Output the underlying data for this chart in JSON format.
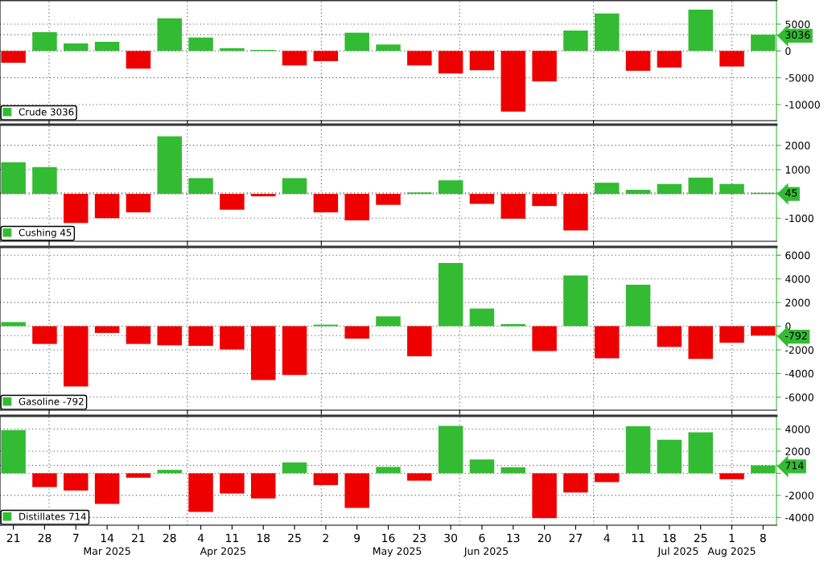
{
  "chart_data": [
    {
      "type": "bar",
      "x": [
        "2025-02-21",
        "2025-02-28",
        "2025-03-07",
        "2025-03-14",
        "2025-03-21",
        "2025-03-28",
        "2025-04-04",
        "2025-04-11",
        "2025-04-18",
        "2025-04-25",
        "2025-05-02",
        "2025-05-09",
        "2025-05-16",
        "2025-05-23",
        "2025-05-30",
        "2025-06-06",
        "2025-06-13",
        "2025-06-20",
        "2025-06-27",
        "2025-07-04",
        "2025-07-11",
        "2025-07-18",
        "2025-07-25",
        "2025-08-01",
        "2025-08-08"
      ],
      "series": [
        {
          "name": "Crude 3036",
          "color": "#33bb33",
          "values": [
            -2200,
            3500,
            1400,
            1700,
            -3300,
            6100,
            2500,
            500,
            200,
            -2700,
            -1900,
            3400,
            1200,
            -2700,
            -4200,
            -3600,
            -11300,
            -5700,
            3800,
            7000,
            -3700,
            -3100,
            7700,
            -2900,
            3036
          ],
          "colors": [
            "#ee0000",
            "#33bb33",
            "#33bb33",
            "#33bb33",
            "#ee0000",
            "#33bb33",
            "#33bb33",
            "#33bb33",
            "#33bb33",
            "#ee0000",
            "#ee0000",
            "#33bb33",
            "#33bb33",
            "#ee0000",
            "#ee0000",
            "#ee0000",
            "#ee0000",
            "#ee0000",
            "#33bb33",
            "#33bb33",
            "#ee0000",
            "#ee0000",
            "#33bb33",
            "#ee0000",
            "#33bb33"
          ]
        }
      ],
      "xlim": [
        "2025-02-18",
        "2025-08-11"
      ],
      "ylim": [
        -13000,
        9500
      ],
      "yticks": [
        -10000,
        -5000,
        0,
        5000,
        {
          "value": 3036,
          "label": "3036"
        }
      ],
      "xticks": [
        {
          "value": "2025-03-01",
          "label": null
        },
        {
          "value": "2025-04-01",
          "label": null
        },
        {
          "value": "2025-05-01",
          "label": null
        },
        {
          "value": "2025-06-01",
          "label": null
        },
        {
          "value": "2025-07-01",
          "label": null
        },
        {
          "value": "2025-08-01",
          "label": null
        }
      ],
      "grid": true,
      "legend": "bottom left",
      "tick_labels": "y"
    },
    {
      "type": "bar",
      "x": [
        "2025-02-21",
        "2025-02-28",
        "2025-03-07",
        "2025-03-14",
        "2025-03-21",
        "2025-03-28",
        "2025-04-04",
        "2025-04-11",
        "2025-04-18",
        "2025-04-25",
        "2025-05-02",
        "2025-05-09",
        "2025-05-16",
        "2025-05-23",
        "2025-05-30",
        "2025-06-06",
        "2025-06-13",
        "2025-06-20",
        "2025-06-27",
        "2025-07-04",
        "2025-07-11",
        "2025-07-18",
        "2025-07-25",
        "2025-08-01",
        "2025-08-08"
      ],
      "series": [
        {
          "name": "Cushing 45",
          "color": "#33bb33",
          "values": [
            1300,
            1100,
            -1200,
            -1000,
            -760,
            2370,
            650,
            -650,
            -100,
            650,
            -760,
            -1090,
            -450,
            60,
            560,
            -410,
            -1020,
            -500,
            -1500,
            460,
            170,
            410,
            670,
            410,
            45
          ],
          "colors": [
            "#33bb33",
            "#33bb33",
            "#ee0000",
            "#ee0000",
            "#ee0000",
            "#33bb33",
            "#33bb33",
            "#ee0000",
            "#ee0000",
            "#33bb33",
            "#ee0000",
            "#ee0000",
            "#ee0000",
            "#33bb33",
            "#33bb33",
            "#ee0000",
            "#ee0000",
            "#ee0000",
            "#ee0000",
            "#33bb33",
            "#33bb33",
            "#33bb33",
            "#33bb33",
            "#33bb33",
            "#33bb33"
          ]
        }
      ],
      "xlim": [
        "2025-02-18",
        "2025-08-11"
      ],
      "ylim": [
        -1950,
        2850
      ],
      "yticks": [
        -1000,
        {
          "value": 0,
          "label": null
        },
        1000,
        2000,
        {
          "value": 45,
          "label": "45"
        }
      ],
      "xticks": [
        {
          "value": "2025-03-01",
          "label": null
        },
        {
          "value": "2025-04-01",
          "label": null
        },
        {
          "value": "2025-05-01",
          "label": null
        },
        {
          "value": "2025-06-01",
          "label": null
        },
        {
          "value": "2025-07-01",
          "label": null
        },
        {
          "value": "2025-08-01",
          "label": null
        }
      ],
      "grid": true,
      "legend": "bottom left",
      "tick_labels": "y"
    },
    {
      "type": "bar",
      "x": [
        "2025-02-21",
        "2025-02-28",
        "2025-03-07",
        "2025-03-14",
        "2025-03-21",
        "2025-03-28",
        "2025-04-04",
        "2025-04-11",
        "2025-04-18",
        "2025-04-25",
        "2025-05-02",
        "2025-05-09",
        "2025-05-16",
        "2025-05-23",
        "2025-05-30",
        "2025-06-06",
        "2025-06-13",
        "2025-06-20",
        "2025-06-27",
        "2025-07-04",
        "2025-07-11",
        "2025-07-18",
        "2025-07-25",
        "2025-08-01",
        "2025-08-08"
      ],
      "series": [
        {
          "name": "Gasoline -792",
          "color": "#33bb33",
          "values": [
            350,
            -1500,
            -5100,
            -570,
            -1500,
            -1620,
            -1660,
            -1970,
            -4550,
            -4120,
            130,
            -1050,
            830,
            -2540,
            5340,
            1490,
            175,
            -2100,
            4290,
            -2720,
            3500,
            -1750,
            -2760,
            -1400,
            -792
          ],
          "colors": [
            "#33bb33",
            "#ee0000",
            "#ee0000",
            "#ee0000",
            "#ee0000",
            "#ee0000",
            "#ee0000",
            "#ee0000",
            "#ee0000",
            "#ee0000",
            "#33bb33",
            "#ee0000",
            "#33bb33",
            "#ee0000",
            "#33bb33",
            "#33bb33",
            "#33bb33",
            "#ee0000",
            "#33bb33",
            "#ee0000",
            "#33bb33",
            "#ee0000",
            "#ee0000",
            "#ee0000",
            "#ee0000"
          ]
        }
      ],
      "xlim": [
        "2025-02-18",
        "2025-08-11"
      ],
      "ylim": [
        -7100,
        6700
      ],
      "yticks": [
        -6000,
        -4000,
        -2000,
        0,
        2000,
        4000,
        6000,
        {
          "value": -792,
          "label": "-792"
        }
      ],
      "xticks": [
        {
          "value": "2025-03-01",
          "label": null
        },
        {
          "value": "2025-04-01",
          "label": null
        },
        {
          "value": "2025-05-01",
          "label": null
        },
        {
          "value": "2025-06-01",
          "label": null
        },
        {
          "value": "2025-07-01",
          "label": null
        },
        {
          "value": "2025-08-01",
          "label": null
        }
      ],
      "grid": true,
      "legend": "bottom left",
      "tick_labels": "y"
    },
    {
      "type": "bar",
      "x": [
        "2025-02-21",
        "2025-02-28",
        "2025-03-07",
        "2025-03-14",
        "2025-03-21",
        "2025-03-28",
        "2025-04-04",
        "2025-04-11",
        "2025-04-18",
        "2025-04-25",
        "2025-05-02",
        "2025-05-09",
        "2025-05-16",
        "2025-05-23",
        "2025-05-30",
        "2025-06-06",
        "2025-06-13",
        "2025-06-20",
        "2025-06-27",
        "2025-07-04",
        "2025-07-11",
        "2025-07-18",
        "2025-07-25",
        "2025-08-01",
        "2025-08-08"
      ],
      "series": [
        {
          "name": "Distillates 714",
          "color": "#33bb33",
          "values": [
            3900,
            -1250,
            -1560,
            -2770,
            -400,
            310,
            -3490,
            -1830,
            -2280,
            980,
            -1070,
            -3130,
            580,
            -670,
            4290,
            1250,
            540,
            -4070,
            -1740,
            -800,
            4250,
            3040,
            3710,
            -540,
            714
          ],
          "colors": [
            "#33bb33",
            "#ee0000",
            "#ee0000",
            "#ee0000",
            "#ee0000",
            "#33bb33",
            "#ee0000",
            "#ee0000",
            "#ee0000",
            "#33bb33",
            "#ee0000",
            "#ee0000",
            "#33bb33",
            "#ee0000",
            "#33bb33",
            "#33bb33",
            "#33bb33",
            "#ee0000",
            "#ee0000",
            "#ee0000",
            "#33bb33",
            "#33bb33",
            "#33bb33",
            "#ee0000",
            "#33bb33"
          ]
        }
      ],
      "xlim": [
        "2025-02-18",
        "2025-08-11"
      ],
      "ylim": [
        -4700,
        5200
      ],
      "yticks": [
        -4000,
        -2000,
        {
          "value": 0,
          "label": null
        },
        2000,
        4000,
        {
          "value": 714,
          "label": "714"
        }
      ],
      "xticks": [
        {
          "value": "2025-02-21",
          "label": "21"
        },
        {
          "value": "2025-02-28",
          "label": "28"
        },
        {
          "value": "2025-03-07",
          "label": "7"
        },
        {
          "value": "2025-03-14",
          "label": "14"
        },
        {
          "value": "2025-03-21",
          "label": "21"
        },
        {
          "value": "2025-03-28",
          "label": "28"
        },
        {
          "value": "2025-04-04",
          "label": "4"
        },
        {
          "value": "2025-04-11",
          "label": "11"
        },
        {
          "value": "2025-04-18",
          "label": "18"
        },
        {
          "value": "2025-04-25",
          "label": "25"
        },
        {
          "value": "2025-05-02",
          "label": "2"
        },
        {
          "value": "2025-05-09",
          "label": "9"
        },
        {
          "value": "2025-05-16",
          "label": "16"
        },
        {
          "value": "2025-05-23",
          "label": "23"
        },
        {
          "value": "2025-05-30",
          "label": "30"
        },
        {
          "value": "2025-06-06",
          "label": "6"
        },
        {
          "value": "2025-06-13",
          "label": "13"
        },
        {
          "value": "2025-06-20",
          "label": "20"
        },
        {
          "value": "2025-06-27",
          "label": "27"
        },
        {
          "value": "2025-07-04",
          "label": "4"
        },
        {
          "value": "2025-07-11",
          "label": "11"
        },
        {
          "value": "2025-07-18",
          "label": "18"
        },
        {
          "value": "2025-07-25",
          "label": "25"
        },
        {
          "value": "2025-08-01",
          "label": "1"
        },
        {
          "value": "2025-08-08",
          "label": "8"
        }
      ],
      "x2lim": [
        "2025-02-18",
        "2025-08-11"
      ],
      "x2ticks": [
        {
          "value": "2025-03-01",
          "label": null
        },
        {
          "value": "2025-03-14",
          "label": "Mar 2025"
        },
        {
          "value": "2025-04-01",
          "label": null
        },
        {
          "value": "2025-04-09",
          "label": "Apr 2025"
        },
        {
          "value": "2025-05-01",
          "label": null
        },
        {
          "value": "2025-05-18",
          "label": "May 2025"
        },
        {
          "value": "2025-06-01",
          "label": null
        },
        {
          "value": "2025-06-07",
          "label": "Jun 2025"
        },
        {
          "value": "2025-07-01",
          "label": null
        },
        {
          "value": "2025-07-20",
          "label": "Jul 2025"
        },
        {
          "value": "2025-08-01",
          "label": null
        },
        {
          "value": "2025-08-01",
          "label": "Aug 2025"
        }
      ],
      "grid": true,
      "legend": "bottom left"
    }
  ]
}
